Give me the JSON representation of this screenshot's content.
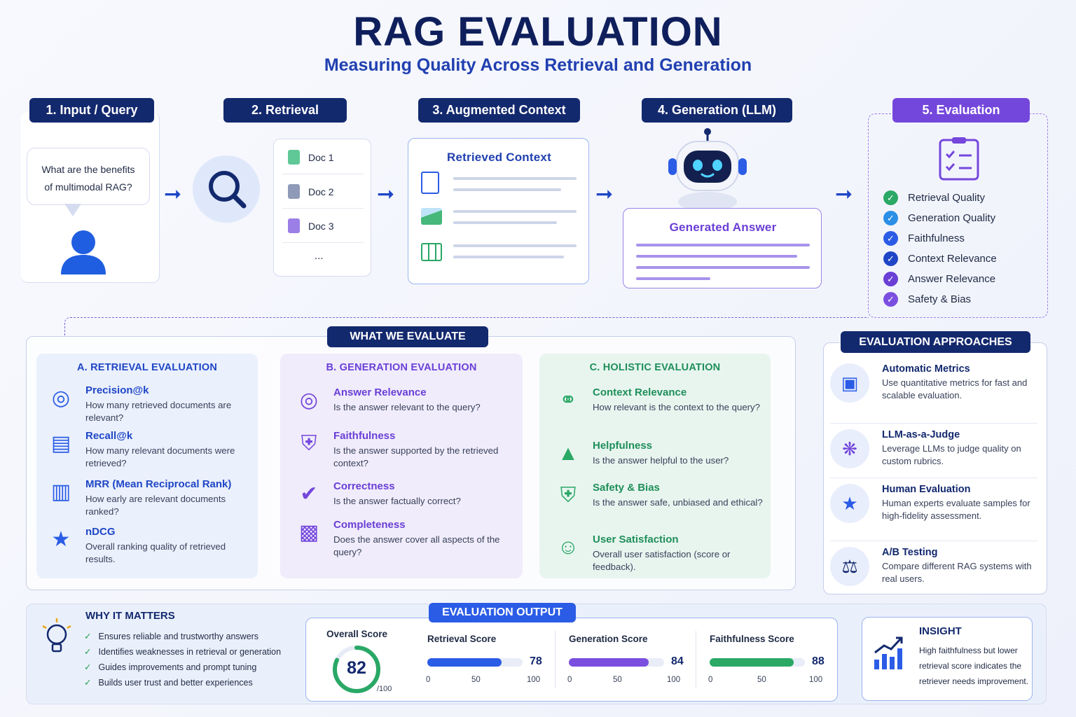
{
  "title": "RAG EVALUATION",
  "subtitle": "Measuring Quality Across Retrieval and Generation",
  "pipeline": {
    "stages": [
      "1. Input / Query",
      "2. Retrieval",
      "3. Augmented Context",
      "4. Generation (LLM)",
      "5. Evaluation"
    ],
    "query_line1": "What are the benefits",
    "query_line2": "of multimodal RAG?",
    "docs": [
      "Doc 1",
      "Doc 2",
      "Doc 3",
      "..."
    ],
    "context_title": "Retrieved Context",
    "answer_title": "Generated Answer",
    "eval_items": [
      "Retrieval Quality",
      "Generation Quality",
      "Faithfulness",
      "Context Relevance",
      "Answer Relevance",
      "Safety & Bias"
    ]
  },
  "what_we_evaluate": {
    "label": "WHAT WE EVALUATE",
    "retrieval": {
      "title": "A. RETRIEVAL EVALUATION",
      "metrics": [
        {
          "title": "Precision@k",
          "desc": "How many retrieved documents are relevant?"
        },
        {
          "title": "Recall@k",
          "desc": "How many relevant documents were retrieved?"
        },
        {
          "title": "MRR (Mean Reciprocal Rank)",
          "desc": "How early are relevant documents ranked?"
        },
        {
          "title": "nDCG",
          "desc": "Overall ranking quality of retrieved results."
        }
      ]
    },
    "generation": {
      "title": "B. GENERATION EVALUATION",
      "metrics": [
        {
          "title": "Answer Relevance",
          "desc": "Is the answer relevant to the query?"
        },
        {
          "title": "Faithfulness",
          "desc": "Is the answer supported by the retrieved context?"
        },
        {
          "title": "Correctness",
          "desc": "Is the answer factually correct?"
        },
        {
          "title": "Completeness",
          "desc": "Does the answer cover all aspects of the query?"
        }
      ]
    },
    "holistic": {
      "title": "C. HOLISTIC EVALUATION",
      "metrics": [
        {
          "title": "Context Relevance",
          "desc": "How relevant is the context to the query?"
        },
        {
          "title": "Helpfulness",
          "desc": "Is the answer helpful to the user?"
        },
        {
          "title": "Safety & Bias",
          "desc": "Is the answer safe, unbiased and ethical?"
        },
        {
          "title": "User Satisfaction",
          "desc": "Overall user satisfaction (score or feedback)."
        }
      ]
    }
  },
  "approaches": {
    "label": "EVALUATION APPROACHES",
    "items": [
      {
        "title": "Automatic Metrics",
        "desc": "Use quantitative metrics for fast and scalable evaluation."
      },
      {
        "title": "LLM-as-a-Judge",
        "desc": "Leverage LLMs to judge quality on custom rubrics."
      },
      {
        "title": "Human Evaluation",
        "desc": "Human experts evaluate samples for high-fidelity assessment."
      },
      {
        "title": "A/B Testing",
        "desc": "Compare different RAG systems with real users."
      }
    ]
  },
  "why": {
    "title": "WHY IT MATTERS",
    "items": [
      "Ensures reliable and trustworthy answers",
      "Identifies weaknesses in retrieval or generation",
      "Guides improvements and prompt tuning",
      "Builds user trust and better experiences"
    ]
  },
  "output": {
    "label": "EVALUATION OUTPUT",
    "overall_label": "Overall Score",
    "overall_value": "82",
    "overall_max": "/100",
    "scores": [
      {
        "title": "Retrieval Score",
        "value": 78,
        "color": "#2b5ce6"
      },
      {
        "title": "Generation Score",
        "value": 84,
        "color": "#7a4fe0"
      },
      {
        "title": "Faithfulness Score",
        "value": 88,
        "color": "#2aa866"
      }
    ],
    "ticks": [
      "0",
      "50",
      "100"
    ]
  },
  "insight": {
    "title": "INSIGHT",
    "text": "High faithfulness but lower retrieval score indicates the retriever needs improvement."
  },
  "colors": {
    "navy": "#13296e",
    "blue": "#2b5ce6",
    "purple": "#7a4fe0",
    "green": "#2aa866"
  }
}
